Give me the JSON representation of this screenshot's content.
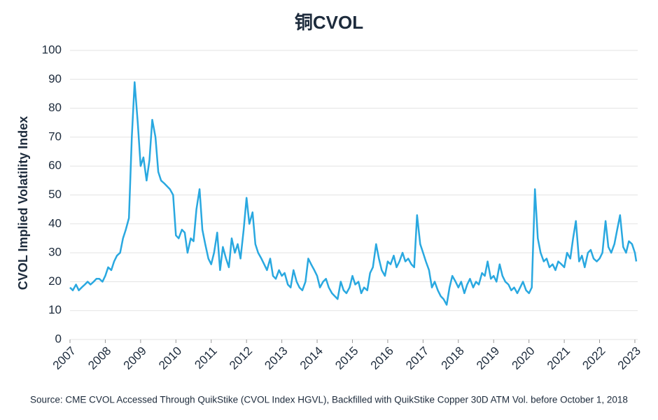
{
  "chart_data": {
    "type": "line",
    "title": "铜CVOL",
    "y_label": "CVOL Implied Volatility Index",
    "source": "Source: CME CVOL Accessed Through QuikStike (CVOL Index HGVL), Backfilled with QuikStike Copper 30D ATM Vol. before October 1, 2018",
    "xlim": [
      2007,
      2023.08
    ],
    "xticks": [
      2007,
      2008,
      2009,
      2010,
      2011,
      2012,
      2013,
      2014,
      2015,
      2016,
      2017,
      2018,
      2019,
      2020,
      2021,
      2022,
      2023
    ],
    "ylim": [
      0,
      100
    ],
    "yticks": [
      0,
      10,
      20,
      30,
      40,
      50,
      60,
      70,
      80,
      90,
      100
    ],
    "grid": true,
    "x": [
      2007,
      2007.08,
      2007.17,
      2007.25,
      2007.33,
      2007.42,
      2007.5,
      2007.58,
      2007.67,
      2007.75,
      2007.83,
      2007.92,
      2008,
      2008.08,
      2008.17,
      2008.25,
      2008.33,
      2008.42,
      2008.5,
      2008.58,
      2008.67,
      2008.75,
      2008.83,
      2008.92,
      2009,
      2009.08,
      2009.17,
      2009.25,
      2009.33,
      2009.42,
      2009.5,
      2009.58,
      2009.67,
      2009.75,
      2009.83,
      2009.92,
      2010,
      2010.08,
      2010.17,
      2010.25,
      2010.33,
      2010.42,
      2010.5,
      2010.58,
      2010.67,
      2010.75,
      2010.83,
      2010.92,
      2011,
      2011.08,
      2011.17,
      2011.25,
      2011.33,
      2011.42,
      2011.5,
      2011.58,
      2011.67,
      2011.75,
      2011.83,
      2011.92,
      2012,
      2012.08,
      2012.17,
      2012.25,
      2012.33,
      2012.42,
      2012.5,
      2012.58,
      2012.67,
      2012.75,
      2012.83,
      2012.92,
      2013,
      2013.08,
      2013.17,
      2013.25,
      2013.33,
      2013.42,
      2013.5,
      2013.58,
      2013.67,
      2013.75,
      2013.83,
      2013.92,
      2014,
      2014.08,
      2014.17,
      2014.25,
      2014.33,
      2014.42,
      2014.5,
      2014.58,
      2014.67,
      2014.75,
      2014.83,
      2014.92,
      2015,
      2015.08,
      2015.17,
      2015.25,
      2015.33,
      2015.42,
      2015.5,
      2015.58,
      2015.67,
      2015.75,
      2015.83,
      2015.92,
      2016,
      2016.08,
      2016.17,
      2016.25,
      2016.33,
      2016.42,
      2016.5,
      2016.58,
      2016.67,
      2016.75,
      2016.83,
      2016.92,
      2017,
      2017.08,
      2017.17,
      2017.25,
      2017.33,
      2017.42,
      2017.5,
      2017.58,
      2017.67,
      2017.75,
      2017.83,
      2017.92,
      2018,
      2018.08,
      2018.17,
      2018.25,
      2018.33,
      2018.42,
      2018.5,
      2018.58,
      2018.67,
      2018.75,
      2018.83,
      2018.92,
      2019,
      2019.08,
      2019.17,
      2019.25,
      2019.33,
      2019.42,
      2019.5,
      2019.58,
      2019.67,
      2019.75,
      2019.83,
      2019.92,
      2020,
      2020.08,
      2020.17,
      2020.25,
      2020.33,
      2020.42,
      2020.5,
      2020.58,
      2020.67,
      2020.75,
      2020.83,
      2020.92,
      2021,
      2021.08,
      2021.17,
      2021.25,
      2021.33,
      2021.42,
      2021.5,
      2021.58,
      2021.67,
      2021.75,
      2021.83,
      2021.92,
      2022,
      2022.08,
      2022.17,
      2022.25,
      2022.33,
      2022.42,
      2022.5,
      2022.58,
      2022.67,
      2022.75,
      2022.83,
      2022.92,
      2023,
      2023.04
    ],
    "series": [
      {
        "name": "CVOL",
        "color": "#29a8e0",
        "values": [
          18,
          17,
          19,
          17,
          18,
          19,
          20,
          19,
          20,
          21,
          21,
          20,
          22,
          25,
          24,
          27,
          29,
          30,
          35,
          38,
          42,
          70,
          89,
          75,
          60,
          63,
          55,
          62,
          76,
          70,
          58,
          55,
          54,
          53,
          52,
          50,
          36,
          35,
          38,
          37,
          30,
          35,
          34,
          45,
          52,
          38,
          33,
          28,
          26,
          30,
          37,
          24,
          32,
          28,
          25,
          35,
          30,
          33,
          28,
          38,
          49,
          40,
          44,
          33,
          30,
          28,
          26,
          24,
          28,
          22,
          21,
          24,
          22,
          23,
          19,
          18,
          24,
          20,
          18,
          17,
          20,
          28,
          26,
          24,
          22,
          18,
          20,
          21,
          18,
          16,
          15,
          14,
          20,
          17,
          16,
          18,
          22,
          19,
          20,
          16,
          18,
          17,
          23,
          25,
          33,
          28,
          24,
          22,
          27,
          26,
          29,
          25,
          27,
          30,
          27,
          28,
          26,
          25,
          43,
          33,
          30,
          27,
          24,
          18,
          20,
          17,
          15,
          14,
          12,
          18,
          22,
          20,
          18,
          20,
          16,
          19,
          21,
          18,
          20,
          19,
          23,
          22,
          27,
          21,
          22,
          20,
          26,
          22,
          20,
          19,
          17,
          18,
          16,
          18,
          20,
          17,
          16,
          18,
          52,
          35,
          30,
          27,
          28,
          25,
          26,
          24,
          27,
          26,
          25,
          30,
          28,
          35,
          41,
          27,
          29,
          25,
          30,
          31,
          28,
          27,
          28,
          30,
          41,
          32,
          30,
          33,
          38,
          43,
          32,
          30,
          34,
          33,
          30,
          27
        ]
      }
    ]
  }
}
